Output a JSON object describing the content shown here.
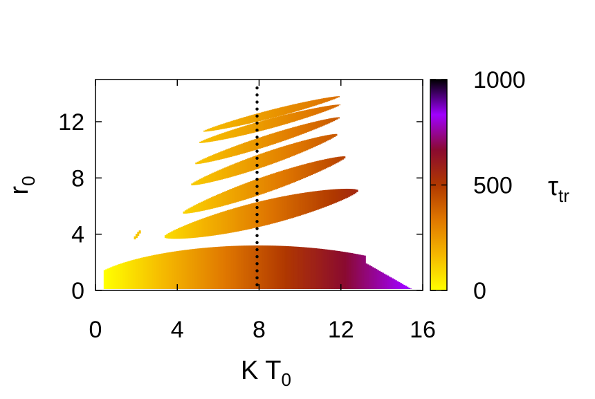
{
  "chart_data": {
    "type": "heatmap",
    "title": "",
    "xlabel": "K T",
    "xlabel_sub": "0",
    "ylabel": "r",
    "ylabel_sub": "0",
    "colorbar_label": "τ",
    "colorbar_label_sub": "tr",
    "xlim": [
      0,
      16
    ],
    "ylim": [
      0,
      15
    ],
    "x_ticks": [
      0,
      4,
      8,
      12,
      16
    ],
    "x_tick_labels": [
      "0",
      "4",
      "8",
      "12",
      "16"
    ],
    "y_ticks": [
      0,
      4,
      8,
      12
    ],
    "y_tick_labels": [
      "0",
      "4",
      "8",
      "12"
    ],
    "colorbar_range": [
      0,
      1000
    ],
    "colorbar_ticks": [
      0,
      500,
      1000
    ],
    "colorbar_tick_labels": [
      "0",
      "500",
      "1000"
    ],
    "colormap": [
      "#ffff00",
      "#f5b800",
      "#e07800",
      "#b03800",
      "#8a0a30",
      "#a000ff",
      "#000000"
    ],
    "grid": false,
    "vertical_marker": {
      "x": 7.9,
      "style": "dotted"
    },
    "regions": [
      {
        "name": "base",
        "x_start": 0.4,
        "x_end": 15.4,
        "y_bottom": 0.1,
        "y_top_max": 3.2,
        "tau_start": 0,
        "tau_end": 850
      },
      {
        "name": "band-1",
        "x_start": 3.3,
        "x_end": 12.8,
        "y_start": 3.8,
        "y_end": 7.1,
        "half_width": 0.9,
        "tau_start": 80,
        "tau_end": 560
      },
      {
        "name": "band-2",
        "x_start": 4.2,
        "x_end": 12.2,
        "y_start": 5.5,
        "y_end": 9.5,
        "half_width": 0.6,
        "tau_start": 100,
        "tau_end": 480
      },
      {
        "name": "band-3",
        "x_start": 4.6,
        "x_end": 11.8,
        "y_start": 7.5,
        "y_end": 11.1,
        "half_width": 0.5,
        "tau_start": 120,
        "tau_end": 420
      },
      {
        "name": "band-4",
        "x_start": 4.8,
        "x_end": 11.9,
        "y_start": 9.0,
        "y_end": 12.3,
        "half_width": 0.4,
        "tau_start": 130,
        "tau_end": 420
      },
      {
        "name": "band-5",
        "x_start": 5.0,
        "x_end": 11.9,
        "y_start": 10.5,
        "y_end": 13.2,
        "half_width": 0.35,
        "tau_start": 140,
        "tau_end": 380
      },
      {
        "name": "band-6",
        "x_start": 5.2,
        "x_end": 11.9,
        "y_start": 11.3,
        "y_end": 13.8,
        "half_width": 0.3,
        "tau_start": 150,
        "tau_end": 360
      },
      {
        "name": "speck",
        "x_start": 1.8,
        "x_end": 2.2,
        "y_start": 3.6,
        "y_end": 4.3,
        "half_width": 0.15,
        "tau_start": 120,
        "tau_end": 150
      }
    ]
  }
}
